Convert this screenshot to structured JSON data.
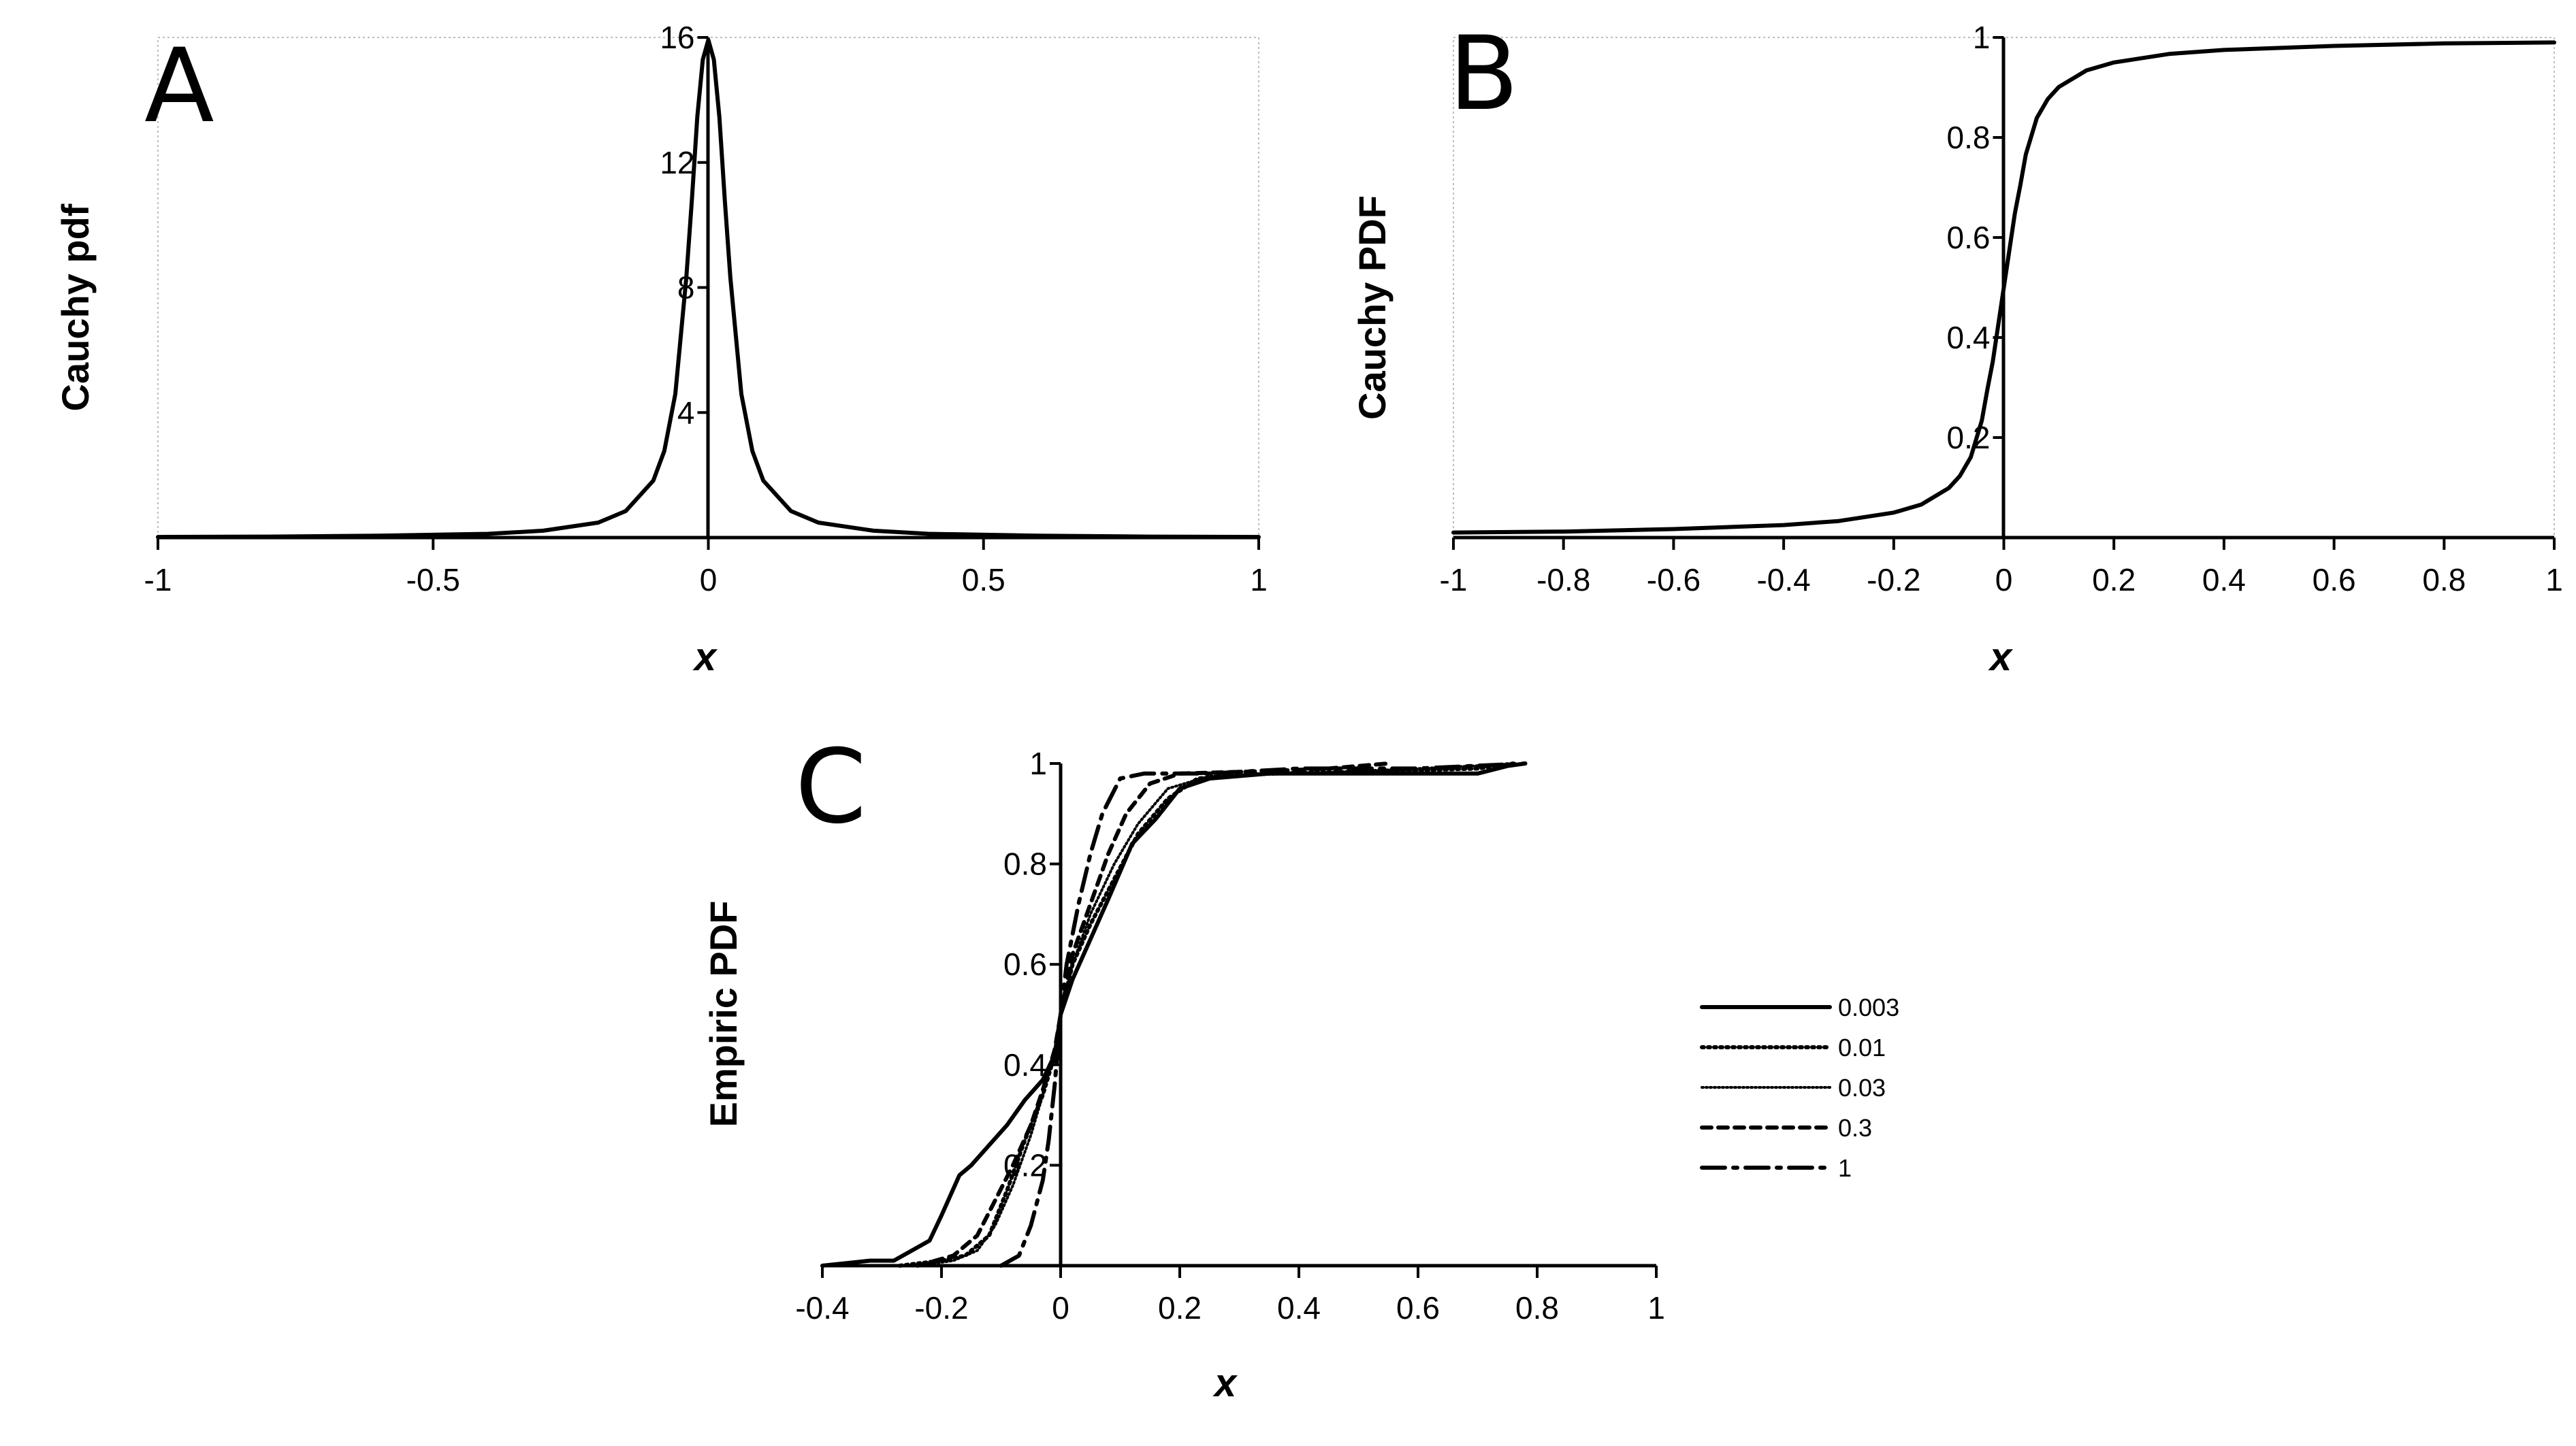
{
  "chart_data": [
    {
      "id": "A",
      "type": "line",
      "panel_label": "A",
      "title": "",
      "xlabel": "x",
      "ylabel": "Cauchy pdf",
      "xlim": [
        -1,
        1
      ],
      "ylim": [
        0,
        16
      ],
      "x_ticks": [
        -1,
        -0.5,
        0,
        0.5,
        1
      ],
      "x_tick_labels": [
        "-1",
        "-0.5",
        "0",
        "0.5",
        "1"
      ],
      "y_ticks": [
        4,
        8,
        12,
        16
      ],
      "y_tick_labels": [
        "4",
        "8",
        "12",
        "16"
      ],
      "grid": false,
      "series": [
        {
          "values": [
            {
              "x": -1.0,
              "y": 0.02
            },
            {
              "x": -0.8,
              "y": 0.03
            },
            {
              "x": -0.6,
              "y": 0.06
            },
            {
              "x": -0.4,
              "y": 0.12
            },
            {
              "x": -0.3,
              "y": 0.22
            },
            {
              "x": -0.2,
              "y": 0.48
            },
            {
              "x": -0.15,
              "y": 0.85
            },
            {
              "x": -0.1,
              "y": 1.82
            },
            {
              "x": -0.08,
              "y": 2.77
            },
            {
              "x": -0.06,
              "y": 4.59
            },
            {
              "x": -0.04,
              "y": 8.33
            },
            {
              "x": -0.03,
              "y": 10.76
            },
            {
              "x": -0.02,
              "y": 13.46
            },
            {
              "x": -0.01,
              "y": 15.29
            },
            {
              "x": 0.0,
              "y": 15.92
            },
            {
              "x": 0.01,
              "y": 15.29
            },
            {
              "x": 0.02,
              "y": 13.46
            },
            {
              "x": 0.03,
              "y": 10.76
            },
            {
              "x": 0.04,
              "y": 8.33
            },
            {
              "x": 0.06,
              "y": 4.59
            },
            {
              "x": 0.08,
              "y": 2.77
            },
            {
              "x": 0.1,
              "y": 1.82
            },
            {
              "x": 0.15,
              "y": 0.85
            },
            {
              "x": 0.2,
              "y": 0.48
            },
            {
              "x": 0.3,
              "y": 0.22
            },
            {
              "x": 0.4,
              "y": 0.12
            },
            {
              "x": 0.6,
              "y": 0.06
            },
            {
              "x": 0.8,
              "y": 0.03
            },
            {
              "x": 1.0,
              "y": 0.02
            }
          ]
        }
      ]
    },
    {
      "id": "B",
      "type": "line",
      "panel_label": "B",
      "title": "",
      "xlabel": "x",
      "ylabel": "Cauchy PDF",
      "xlim": [
        -1,
        1
      ],
      "ylim": [
        0,
        1
      ],
      "x_ticks": [
        -1,
        -0.8,
        -0.6,
        -0.4,
        -0.2,
        0,
        0.2,
        0.4,
        0.6,
        0.8,
        1
      ],
      "x_tick_labels": [
        "-1",
        "-0.8",
        "-0.6",
        "-0.4",
        "-0.2",
        "0",
        "0.2",
        "0.4",
        "0.6",
        "0.8",
        "1"
      ],
      "y_ticks": [
        0.2,
        0.4,
        0.6,
        0.8,
        1
      ],
      "y_tick_labels": [
        "0.2",
        "0.4",
        "0.6",
        "0.8",
        "1"
      ],
      "grid": false,
      "series": [
        {
          "values": [
            {
              "x": -1.0,
              "y": 0.01
            },
            {
              "x": -0.8,
              "y": 0.012
            },
            {
              "x": -0.6,
              "y": 0.017
            },
            {
              "x": -0.4,
              "y": 0.025
            },
            {
              "x": -0.3,
              "y": 0.033
            },
            {
              "x": -0.2,
              "y": 0.05
            },
            {
              "x": -0.15,
              "y": 0.066
            },
            {
              "x": -0.1,
              "y": 0.099
            },
            {
              "x": -0.08,
              "y": 0.123
            },
            {
              "x": -0.06,
              "y": 0.161
            },
            {
              "x": -0.04,
              "y": 0.234
            },
            {
              "x": -0.03,
              "y": 0.295
            },
            {
              "x": -0.02,
              "y": 0.352
            },
            {
              "x": -0.01,
              "y": 0.426
            },
            {
              "x": 0.0,
              "y": 0.5
            },
            {
              "x": 0.01,
              "y": 0.574
            },
            {
              "x": 0.02,
              "y": 0.648
            },
            {
              "x": 0.03,
              "y": 0.705
            },
            {
              "x": 0.04,
              "y": 0.766
            },
            {
              "x": 0.06,
              "y": 0.839
            },
            {
              "x": 0.08,
              "y": 0.877
            },
            {
              "x": 0.1,
              "y": 0.901
            },
            {
              "x": 0.15,
              "y": 0.934
            },
            {
              "x": 0.2,
              "y": 0.95
            },
            {
              "x": 0.3,
              "y": 0.967
            },
            {
              "x": 0.4,
              "y": 0.975
            },
            {
              "x": 0.6,
              "y": 0.983
            },
            {
              "x": 0.8,
              "y": 0.988
            },
            {
              "x": 1.0,
              "y": 0.99
            }
          ]
        }
      ]
    },
    {
      "id": "C",
      "type": "line",
      "panel_label": "C",
      "title": "",
      "xlabel": "x",
      "ylabel": "Empiric PDF",
      "xlim": [
        -0.4,
        1
      ],
      "ylim": [
        0,
        1
      ],
      "x_ticks": [
        -0.4,
        -0.2,
        0,
        0.2,
        0.4,
        0.6,
        0.8,
        1
      ],
      "x_tick_labels": [
        "-0.4",
        "-0.2",
        "0",
        "0.2",
        "0.4",
        "0.6",
        "0.8",
        "1"
      ],
      "y_ticks": [
        0.2,
        0.4,
        0.6,
        0.8,
        1
      ],
      "y_tick_labels": [
        "0.2",
        "0.4",
        "0.6",
        "0.8",
        "1"
      ],
      "grid": false,
      "legend_position": "right",
      "series": [
        {
          "name": "0.003",
          "dash": "solid",
          "values": [
            {
              "x": -0.4,
              "y": 0.0
            },
            {
              "x": -0.32,
              "y": 0.01
            },
            {
              "x": -0.28,
              "y": 0.01
            },
            {
              "x": -0.25,
              "y": 0.03
            },
            {
              "x": -0.22,
              "y": 0.05
            },
            {
              "x": -0.2,
              "y": 0.1
            },
            {
              "x": -0.17,
              "y": 0.18
            },
            {
              "x": -0.15,
              "y": 0.2
            },
            {
              "x": -0.12,
              "y": 0.24
            },
            {
              "x": -0.09,
              "y": 0.28
            },
            {
              "x": -0.06,
              "y": 0.33
            },
            {
              "x": -0.03,
              "y": 0.37
            },
            {
              "x": -0.01,
              "y": 0.42
            },
            {
              "x": 0.0,
              "y": 0.5
            },
            {
              "x": 0.02,
              "y": 0.57
            },
            {
              "x": 0.05,
              "y": 0.65
            },
            {
              "x": 0.08,
              "y": 0.73
            },
            {
              "x": 0.12,
              "y": 0.84
            },
            {
              "x": 0.16,
              "y": 0.89
            },
            {
              "x": 0.2,
              "y": 0.95
            },
            {
              "x": 0.25,
              "y": 0.97
            },
            {
              "x": 0.35,
              "y": 0.98
            },
            {
              "x": 0.5,
              "y": 0.98
            },
            {
              "x": 0.7,
              "y": 0.98
            },
            {
              "x": 0.75,
              "y": 0.995
            },
            {
              "x": 0.78,
              "y": 1.0
            }
          ]
        },
        {
          "name": "0.01",
          "dash": "dotted",
          "values": [
            {
              "x": -0.27,
              "y": 0.0
            },
            {
              "x": -0.2,
              "y": 0.01
            },
            {
              "x": -0.16,
              "y": 0.02
            },
            {
              "x": -0.12,
              "y": 0.06
            },
            {
              "x": -0.09,
              "y": 0.15
            },
            {
              "x": -0.06,
              "y": 0.25
            },
            {
              "x": -0.03,
              "y": 0.34
            },
            {
              "x": -0.01,
              "y": 0.42
            },
            {
              "x": 0.0,
              "y": 0.5
            },
            {
              "x": 0.02,
              "y": 0.6
            },
            {
              "x": 0.05,
              "y": 0.68
            },
            {
              "x": 0.09,
              "y": 0.77
            },
            {
              "x": 0.13,
              "y": 0.86
            },
            {
              "x": 0.18,
              "y": 0.93
            },
            {
              "x": 0.23,
              "y": 0.97
            },
            {
              "x": 0.35,
              "y": 0.98
            },
            {
              "x": 0.55,
              "y": 0.985
            },
            {
              "x": 0.7,
              "y": 0.99
            },
            {
              "x": 0.76,
              "y": 1.0
            }
          ]
        },
        {
          "name": "0.03",
          "dash": "dotted-fine",
          "values": [
            {
              "x": -0.24,
              "y": 0.0
            },
            {
              "x": -0.18,
              "y": 0.01
            },
            {
              "x": -0.14,
              "y": 0.03
            },
            {
              "x": -0.11,
              "y": 0.08
            },
            {
              "x": -0.08,
              "y": 0.16
            },
            {
              "x": -0.05,
              "y": 0.26
            },
            {
              "x": -0.03,
              "y": 0.34
            },
            {
              "x": -0.01,
              "y": 0.43
            },
            {
              "x": 0.0,
              "y": 0.5
            },
            {
              "x": 0.02,
              "y": 0.6
            },
            {
              "x": 0.05,
              "y": 0.7
            },
            {
              "x": 0.09,
              "y": 0.8
            },
            {
              "x": 0.13,
              "y": 0.88
            },
            {
              "x": 0.18,
              "y": 0.95
            },
            {
              "x": 0.25,
              "y": 0.975
            },
            {
              "x": 0.4,
              "y": 0.98
            },
            {
              "x": 0.6,
              "y": 0.99
            },
            {
              "x": 0.78,
              "y": 1.0
            }
          ]
        },
        {
          "name": "0.3",
          "dash": "dashed",
          "values": [
            {
              "x": -0.24,
              "y": 0.0
            },
            {
              "x": -0.18,
              "y": 0.02
            },
            {
              "x": -0.14,
              "y": 0.06
            },
            {
              "x": -0.11,
              "y": 0.13
            },
            {
              "x": -0.08,
              "y": 0.2
            },
            {
              "x": -0.05,
              "y": 0.28
            },
            {
              "x": -0.03,
              "y": 0.35
            },
            {
              "x": -0.01,
              "y": 0.43
            },
            {
              "x": 0.0,
              "y": 0.5
            },
            {
              "x": 0.02,
              "y": 0.62
            },
            {
              "x": 0.05,
              "y": 0.72
            },
            {
              "x": 0.08,
              "y": 0.82
            },
            {
              "x": 0.11,
              "y": 0.9
            },
            {
              "x": 0.15,
              "y": 0.96
            },
            {
              "x": 0.2,
              "y": 0.98
            },
            {
              "x": 0.35,
              "y": 0.985
            },
            {
              "x": 0.45,
              "y": 0.99
            },
            {
              "x": 0.55,
              "y": 1.0
            }
          ]
        },
        {
          "name": "1",
          "dash": "dash-dot",
          "values": [
            {
              "x": -0.1,
              "y": 0.0
            },
            {
              "x": -0.07,
              "y": 0.02
            },
            {
              "x": -0.05,
              "y": 0.08
            },
            {
              "x": -0.03,
              "y": 0.17
            },
            {
              "x": -0.02,
              "y": 0.25
            },
            {
              "x": -0.01,
              "y": 0.36
            },
            {
              "x": 0.0,
              "y": 0.5
            },
            {
              "x": 0.01,
              "y": 0.6
            },
            {
              "x": 0.03,
              "y": 0.72
            },
            {
              "x": 0.05,
              "y": 0.82
            },
            {
              "x": 0.07,
              "y": 0.9
            },
            {
              "x": 0.1,
              "y": 0.97
            },
            {
              "x": 0.14,
              "y": 0.98
            },
            {
              "x": 0.25,
              "y": 0.98
            },
            {
              "x": 0.4,
              "y": 0.99
            },
            {
              "x": 0.6,
              "y": 0.99
            },
            {
              "x": 0.78,
              "y": 1.0
            }
          ]
        }
      ]
    }
  ]
}
